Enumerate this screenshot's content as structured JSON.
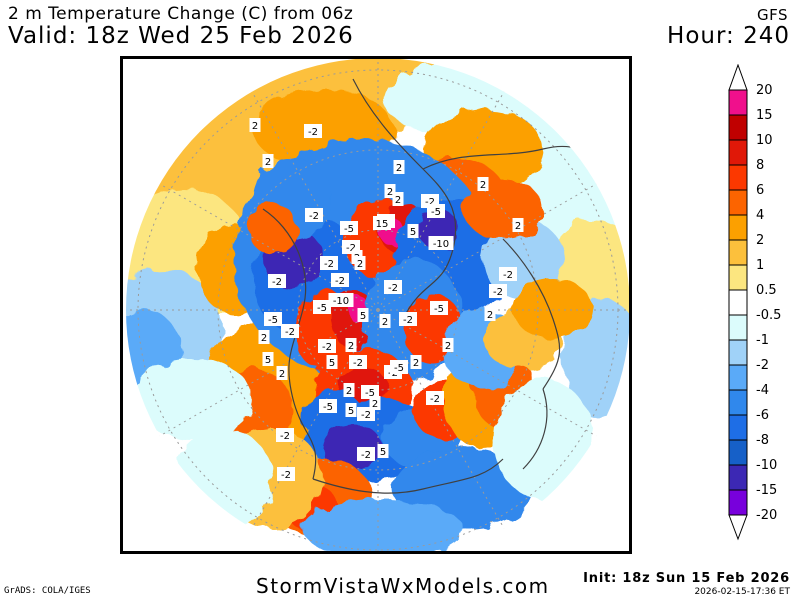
{
  "header": {
    "title": "2 m Temperature Change (C) from 06z",
    "valid": "Valid: 18z Wed 25 Feb 2026",
    "model": "GFS",
    "hour": "Hour: 240"
  },
  "colorbar": {
    "labels": [
      "20",
      "15",
      "10",
      "8",
      "6",
      "4",
      "2",
      "1",
      "0.5",
      "-0.5",
      "-1",
      "-2",
      "-4",
      "-6",
      "-8",
      "-10",
      "-15",
      "-20"
    ],
    "colors": [
      "#f0108c",
      "#c00000",
      "#e01808",
      "#fc3800",
      "#fc6400",
      "#fca000",
      "#fcc03c",
      "#fce680",
      "#ffffff",
      "#dcfcfc",
      "#a0d2f8",
      "#5aaaf8",
      "#3088ec",
      "#1e6ee6",
      "#1660c8",
      "#3c28b4",
      "#7800dc"
    ]
  },
  "map": {
    "colors": {
      "warm1": "#fce680",
      "warm2": "#fcc03c",
      "warm3": "#fca000",
      "warm4": "#fc6400",
      "warm5": "#fc3800",
      "warm6": "#e01808",
      "warm7": "#c00000",
      "warm8": "#f0108c",
      "cool1": "#dcfcfc",
      "cool2": "#a0d2f8",
      "cool3": "#5aaaf8",
      "cool4": "#3088ec",
      "cool5": "#1e6ee6",
      "cool6": "#1660c8",
      "cool7": "#3c28b4",
      "cool8": "#7800dc",
      "land": "#404040"
    },
    "contour_labels": [
      "2",
      "-2",
      "2",
      "2",
      "-2",
      "2",
      "2",
      "2",
      "-2",
      "-5",
      "2",
      "-2",
      "15",
      "5",
      "-10",
      "-5",
      "-2",
      "2",
      "-2",
      "2",
      "-2",
      "-5",
      "-2",
      "-2",
      "-10",
      "-5",
      "5",
      "2",
      "-2",
      "-5",
      "2",
      "-2",
      "-2",
      "2",
      "5",
      "2",
      "2",
      "-5",
      "-2",
      "-5",
      "2",
      "5",
      "5",
      "-2",
      "-5",
      "-2",
      "2",
      "-2",
      "2",
      "-2",
      "-2",
      "2",
      "-2",
      "5",
      "-2",
      "-2"
    ]
  },
  "footer": {
    "grads": "GrADS: COLA/IGES",
    "site": "StormVistaWxModels.com",
    "init": "Init: 18z Sun 15 Feb 2026",
    "stamp": "2026-02-15-17:36 ET"
  }
}
